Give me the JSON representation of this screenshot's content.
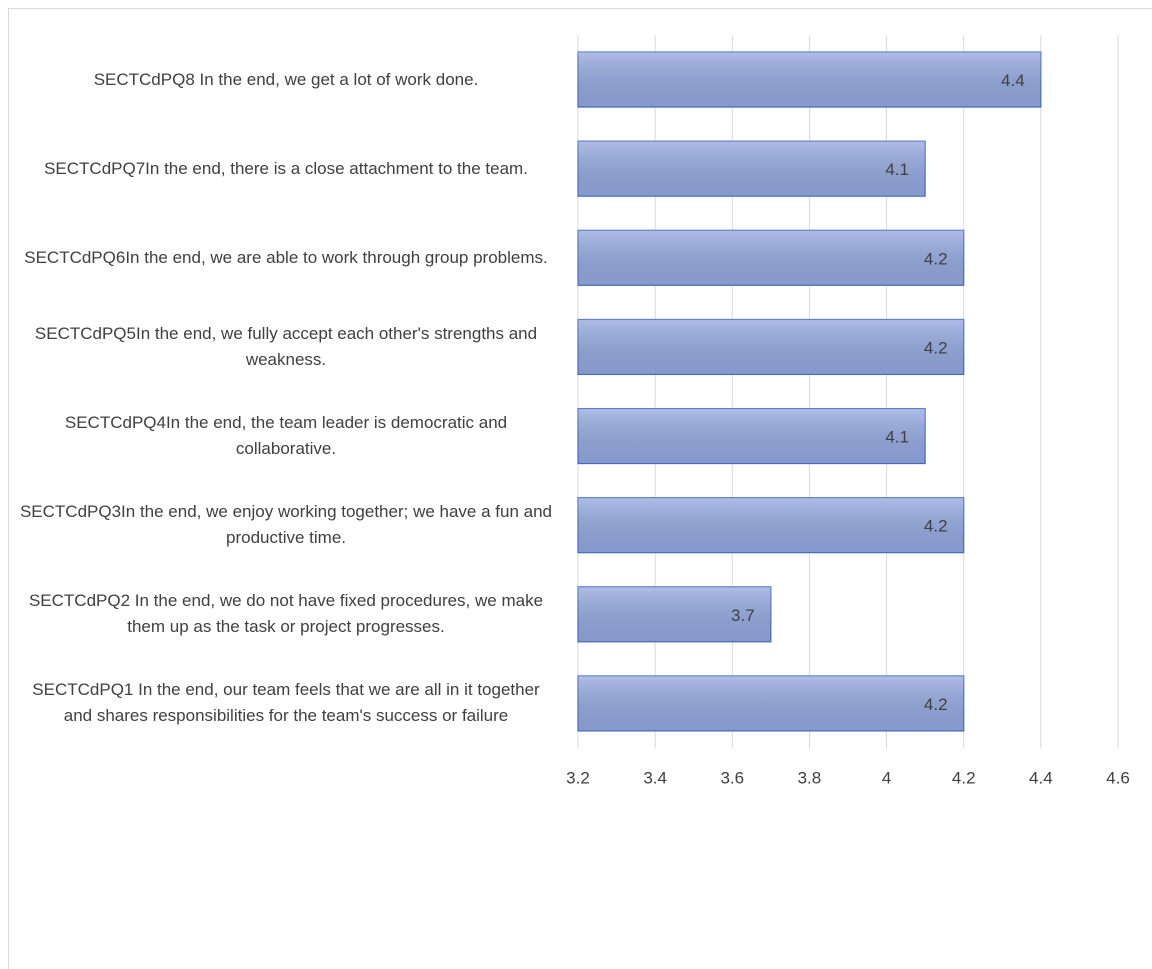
{
  "chart_data": {
    "type": "bar",
    "orientation": "horizontal",
    "categories": [
      "SECTCdPQ8 In the end, we get a lot of work done.",
      "SECTCdPQ7In the end, there is a close attachment to the team.",
      "SECTCdPQ6In the end, we are able to work through group problems.",
      "SECTCdPQ5In the end, we fully accept each other's strengths and weakness.",
      "SECTCdPQ4In the end, the team leader is democratic and collaborative.",
      "SECTCdPQ3In the end, we enjoy working together; we have a fun and productive time.",
      "SECTCdPQ2 In the end, we do not have fixed procedures, we make them up as the task or project progresses.",
      "SECTCdPQ1 In the end, our team feels that we are all in it together and shares responsibilities for the team's success or failure"
    ],
    "values": [
      4.4,
      4.1,
      4.2,
      4.2,
      4.1,
      4.2,
      3.7,
      4.2
    ],
    "color": "#93a8df",
    "xlim": [
      3.2,
      4.6
    ],
    "xticks": [
      3.2,
      3.4,
      3.6,
      3.8,
      4,
      4.2,
      4.4,
      4.6
    ],
    "grid": true
  }
}
